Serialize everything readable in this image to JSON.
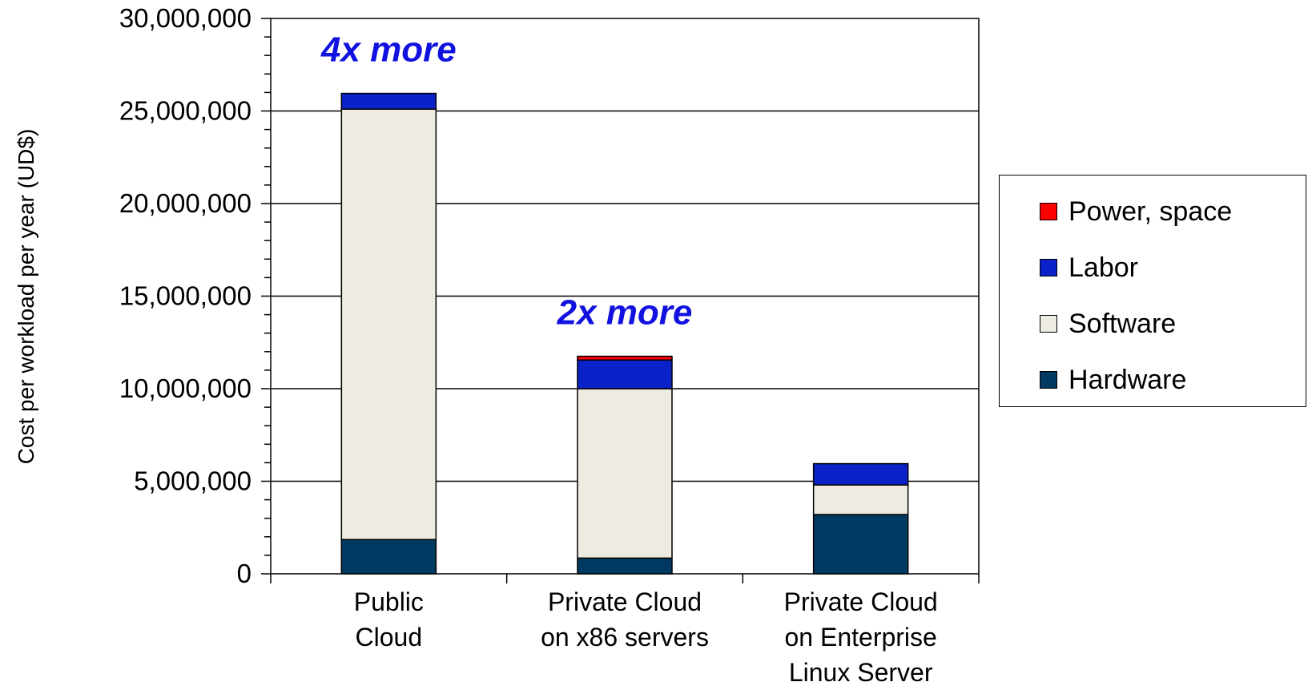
{
  "chart_data": {
    "type": "bar",
    "stacked": true,
    "ylabel": "Cost per workload per year (UD$)",
    "xlabel": "",
    "ylim": [
      0,
      30000000
    ],
    "ytick_labels": [
      "0",
      "5,000,000",
      "10,000,000",
      "15,000,000",
      "20,000,000",
      "25,000,000",
      "30,000,000"
    ],
    "yticks": [
      0,
      5000000,
      10000000,
      15000000,
      20000000,
      25000000,
      30000000
    ],
    "grid": true,
    "legend_position": "right",
    "categories": [
      [
        "Public",
        "Cloud"
      ],
      [
        "Private Cloud",
        "on x86 servers"
      ],
      [
        "Private Cloud",
        "on Enterprise",
        "Linux Server"
      ]
    ],
    "series": [
      {
        "name": "Hardware",
        "color": "#003a63",
        "values": [
          1850000,
          850000,
          3200000
        ]
      },
      {
        "name": "Software",
        "color": "#edebe2",
        "values": [
          23250000,
          9150000,
          1600000
        ]
      },
      {
        "name": "Labor",
        "color": "#0a22c8",
        "values": [
          850000,
          1550000,
          1150000
        ]
      },
      {
        "name": "Power, space",
        "color": "#ff0000",
        "values": [
          0,
          200000,
          0
        ]
      }
    ],
    "annotations": [
      {
        "text": "4x more",
        "category": 0,
        "color": "#1212e0"
      },
      {
        "text": "2x more",
        "category": 1,
        "color": "#1212e0"
      }
    ]
  }
}
